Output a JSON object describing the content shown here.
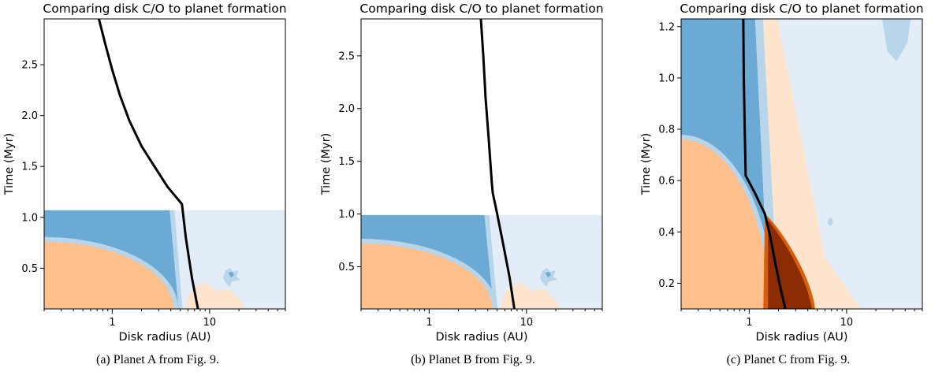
{
  "chart_data": [
    {
      "type": "contour",
      "title": "Comparing disk C/O to planet formation",
      "xlabel": "Disk radius (AU)",
      "ylabel": "Time (Myr)",
      "xscale": "log",
      "xlim": [
        0.2,
        60
      ],
      "ylim": [
        0.1,
        2.95
      ],
      "xticks": [
        1,
        10
      ],
      "xtick_labels": [
        "1",
        "10"
      ],
      "yticks": [
        0.5,
        1.0,
        1.5,
        2.0,
        2.5
      ],
      "ytick_labels": [
        "0.5",
        "1.0",
        "1.5",
        "2.0",
        "2.5"
      ],
      "disk_end_time": 1.07,
      "ice_boundary": {
        "r_at_top": 3.9,
        "r_at_bottom": 4.8
      },
      "orange_region": {
        "r_max": 4.1,
        "t_max": 0.76
      },
      "track": {
        "name": "Planet A",
        "r": [
          0.73,
          0.85,
          1.0,
          1.2,
          1.5,
          2.0,
          2.8,
          3.7,
          5.2,
          5.7,
          6.6,
          7.6
        ],
        "t": [
          2.95,
          2.7,
          2.45,
          2.2,
          1.95,
          1.7,
          1.48,
          1.3,
          1.13,
          0.8,
          0.4,
          0.1
        ]
      },
      "caption": "(a) Planet A from Fig. 9."
    },
    {
      "type": "contour",
      "title": "Comparing disk C/O to planet formation",
      "xlabel": "Disk radius (AU)",
      "ylabel": "Time (Myr)",
      "xscale": "log",
      "xlim": [
        0.2,
        60
      ],
      "ylim": [
        0.1,
        2.85
      ],
      "xticks": [
        1,
        10
      ],
      "xtick_labels": [
        "1",
        "10"
      ],
      "yticks": [
        0.5,
        1.0,
        1.5,
        2.0,
        2.5
      ],
      "ytick_labels": [
        "0.5",
        "1.0",
        "1.5",
        "2.0",
        "2.5"
      ],
      "disk_end_time": 0.99,
      "ice_boundary": {
        "r_at_top": 3.7,
        "r_at_bottom": 4.6
      },
      "orange_region": {
        "r_max": 4.3,
        "t_max": 0.72
      },
      "track": {
        "name": "Planet B",
        "r": [
          3.4,
          3.6,
          3.8,
          4.1,
          4.4,
          4.5,
          5.0,
          5.8,
          6.7,
          7.5
        ],
        "t": [
          2.85,
          2.5,
          2.1,
          1.7,
          1.3,
          1.2,
          1.0,
          0.7,
          0.4,
          0.1
        ]
      },
      "caption": "(b) Planet B from Fig. 9."
    },
    {
      "type": "contour",
      "title": "Comparing disk C/O to planet formation",
      "xlabel": "Disk radius (AU)",
      "ylabel": "Time (Myr)",
      "xscale": "log",
      "xlim": [
        0.2,
        60
      ],
      "ylim": [
        0.1,
        1.23
      ],
      "xticks": [
        1,
        10
      ],
      "xtick_labels": [
        "1",
        "10"
      ],
      "yticks": [
        0.2,
        0.4,
        0.6,
        0.8,
        1.0,
        1.2
      ],
      "ytick_labels": [
        "0.2",
        "0.4",
        "0.6",
        "0.8",
        "1.0",
        "1.2"
      ],
      "disk_end_time": 1.23,
      "ice_boundary": {
        "r_at_top": 1.15,
        "r_at_bottom": 1.6
      },
      "orange_region": {
        "r_max": 1.6,
        "t_max": 0.76
      },
      "track": {
        "name": "Planet C",
        "r": [
          0.87,
          0.88,
          0.9,
          0.92,
          1.15,
          1.45,
          1.65,
          1.85,
          2.1,
          2.35
        ],
        "t": [
          1.23,
          1.0,
          0.8,
          0.62,
          0.55,
          0.47,
          0.38,
          0.28,
          0.18,
          0.1
        ]
      },
      "caption": "(c) Planet C from Fig. 9."
    }
  ],
  "colors": {
    "light_blue": "#e2edf7",
    "mid_blue": "#b9d5ea",
    "dark_blue": "#6aaad4",
    "orange": "#fdc08c",
    "light_orange": "#fee4cc",
    "brown": "#8b2c04",
    "dark_orange": "#d85e0c",
    "track": "#000000"
  }
}
